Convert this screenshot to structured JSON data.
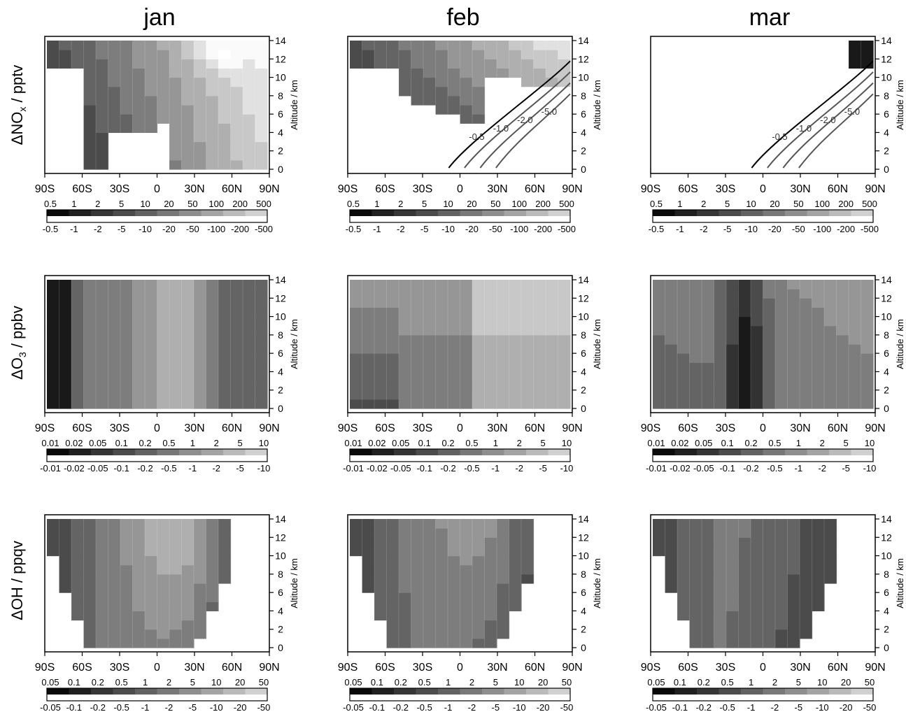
{
  "figure": {
    "columns": [
      "jan",
      "feb",
      "mar"
    ],
    "rows": [
      {
        "label_prefix": "ΔNO",
        "label_sub": "x",
        "label_suffix": " / pptv"
      },
      {
        "label_prefix": "ΔO",
        "label_sub": "3",
        "label_suffix": " / ppbv"
      },
      {
        "label_prefix": "ΔOH / ppqv",
        "label_sub": "",
        "label_suffix": ""
      }
    ],
    "right_axis_label": "Altitude / km"
  },
  "chart_data": [
    {
      "type": "heatmap",
      "variable": "NOx",
      "x_ticks": [
        "90S",
        "60S",
        "30S",
        "0",
        "30N",
        "60N",
        "90N"
      ],
      "y_ticks": [
        "0",
        "2",
        "4",
        "6",
        "8",
        "10",
        "12",
        "14"
      ],
      "y_range": [
        0,
        14
      ],
      "x_range": [
        -90,
        90
      ],
      "colorbar_positive": [
        "0.5",
        "1",
        "2",
        "5",
        "10",
        "20",
        "50",
        "100",
        "200",
        "500"
      ],
      "colorbar_negative": [
        "-0.5",
        "-1",
        "-2",
        "-5",
        "-10",
        "-20",
        "-50",
        "-100",
        "-200",
        "-500"
      ],
      "panels": [
        {
          "month": "jan",
          "level_hint": "low south, high north",
          "contour_labels": []
        },
        {
          "month": "feb",
          "level_hint": "positive north above 6km",
          "contour_labels": [
            "-0.5",
            "-1.0",
            "-2.0",
            "-5.0"
          ]
        },
        {
          "month": "mar",
          "level_hint": "mostly zero, negative contours north",
          "contour_labels": [
            "-0.5",
            "-1.0",
            "-2.0",
            "-5.0"
          ]
        }
      ]
    },
    {
      "type": "heatmap",
      "variable": "O3",
      "x_ticks": [
        "90S",
        "60S",
        "30S",
        "0",
        "30N",
        "60N",
        "90N"
      ],
      "y_ticks": [
        "0",
        "2",
        "4",
        "6",
        "8",
        "10",
        "12",
        "14"
      ],
      "y_range": [
        0,
        14
      ],
      "x_range": [
        -90,
        90
      ],
      "colorbar_positive": [
        "0.01",
        "0.02",
        "0.05",
        "0.1",
        "0.2",
        "0.5",
        "1",
        "2",
        "5",
        "10"
      ],
      "colorbar_negative": [
        "-0.01",
        "-0.02",
        "-0.05",
        "-0.1",
        "-0.2",
        "-0.5",
        "-1",
        "-2",
        "-5",
        "-10"
      ],
      "panels": [
        {
          "month": "jan"
        },
        {
          "month": "feb"
        },
        {
          "month": "mar"
        }
      ]
    },
    {
      "type": "heatmap",
      "variable": "OH",
      "x_ticks": [
        "90S",
        "60S",
        "30S",
        "0",
        "30N",
        "60N",
        "90N"
      ],
      "y_ticks": [
        "0",
        "2",
        "4",
        "6",
        "8",
        "10",
        "12",
        "14"
      ],
      "y_range": [
        0,
        14
      ],
      "x_range": [
        -90,
        90
      ],
      "colorbar_positive": [
        "0.05",
        "0.1",
        "0.2",
        "0.5",
        "1",
        "2",
        "5",
        "10",
        "20",
        "50"
      ],
      "colorbar_negative": [
        "-0.05",
        "-0.1",
        "-0.2",
        "-0.5",
        "-1",
        "-2",
        "-5",
        "-10",
        "-20",
        "-50"
      ],
      "panels": [
        {
          "month": "jan"
        },
        {
          "month": "feb"
        },
        {
          "month": "mar"
        }
      ]
    }
  ]
}
